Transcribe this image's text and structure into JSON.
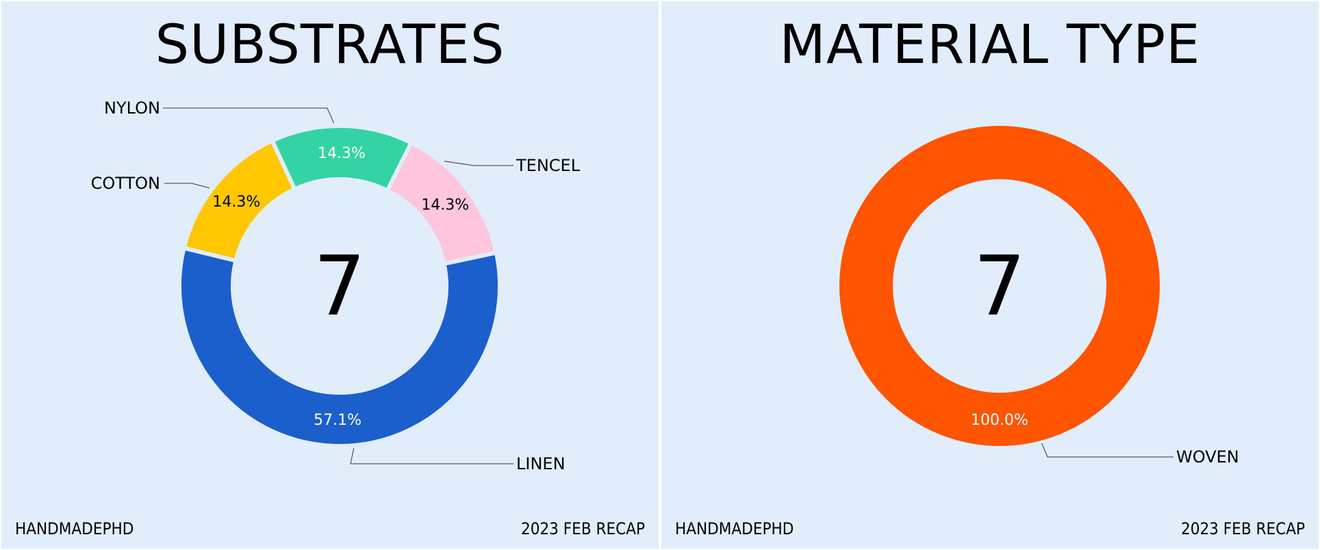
{
  "footer": {
    "brand": "HANDMADEPHD",
    "period": "2023 FEB RECAP"
  },
  "chart_data": [
    {
      "type": "pie",
      "title": "SUBSTRATES",
      "center_label": "7",
      "categories": [
        "LINEN",
        "TENCEL",
        "NYLON",
        "COTTON"
      ],
      "values": [
        4,
        1,
        1,
        1
      ],
      "percent_labels": [
        "57.1%",
        "14.3%",
        "14.3%",
        "14.3%"
      ],
      "colors": [
        "#1b5fcc",
        "#ffc700",
        "#33d3a3",
        "#ffc6dd"
      ],
      "label_colors": [
        "#ffffff",
        "#000000",
        "#ffffff",
        "#000000"
      ]
    },
    {
      "type": "pie",
      "title": "MATERIAL TYPE",
      "center_label": "7",
      "categories": [
        "WOVEN"
      ],
      "values": [
        7
      ],
      "percent_labels": [
        "100.0%"
      ],
      "colors": [
        "#ff5500"
      ],
      "label_colors": [
        "#ffffff"
      ]
    }
  ]
}
